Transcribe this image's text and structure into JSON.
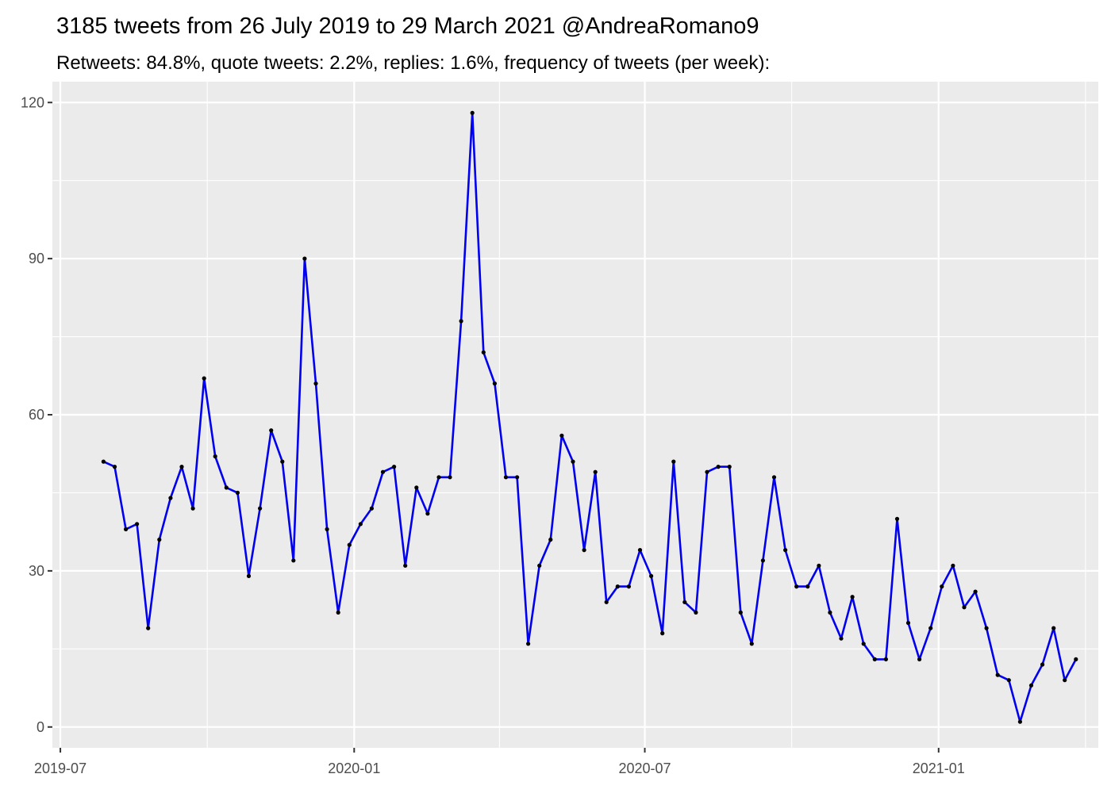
{
  "chart_data": {
    "type": "line",
    "title": "3185 tweets from 26 July 2019 to 29 March 2021 @AndreaRomano9",
    "subtitle": "Retweets: 84.8%, quote tweets: 2.2%, replies: 1.6%, frequency of tweets (per week):",
    "xlabel": "",
    "ylabel": "",
    "ylim": [
      -4,
      124
    ],
    "xlim": [
      "2019-06-26",
      "2021-04-11"
    ],
    "grid": true,
    "legend": "none",
    "colors": {
      "line": "#0000ee",
      "point": "#000000",
      "panel": "#ebebeb",
      "grid": "#ffffff"
    },
    "y_ticks": [
      0,
      30,
      60,
      90,
      120
    ],
    "x_ticks": [
      {
        "value": "2019-07-01",
        "label": "2019-07"
      },
      {
        "value": "2020-01-01",
        "label": "2020-01"
      },
      {
        "value": "2020-07-01",
        "label": "2020-07"
      },
      {
        "value": "2021-01-01",
        "label": "2021-01"
      }
    ],
    "x": [
      "2019-07-28",
      "2019-08-04",
      "2019-08-11",
      "2019-08-18",
      "2019-08-25",
      "2019-09-01",
      "2019-09-08",
      "2019-09-15",
      "2019-09-22",
      "2019-09-29",
      "2019-10-06",
      "2019-10-13",
      "2019-10-20",
      "2019-10-27",
      "2019-11-03",
      "2019-11-10",
      "2019-11-17",
      "2019-11-24",
      "2019-12-01",
      "2019-12-08",
      "2019-12-15",
      "2019-12-22",
      "2019-12-29",
      "2020-01-05",
      "2020-01-12",
      "2020-01-19",
      "2020-01-26",
      "2020-02-02",
      "2020-02-09",
      "2020-02-16",
      "2020-02-23",
      "2020-03-01",
      "2020-03-08",
      "2020-03-15",
      "2020-03-22",
      "2020-03-29",
      "2020-04-05",
      "2020-04-12",
      "2020-04-19",
      "2020-04-26",
      "2020-05-03",
      "2020-05-10",
      "2020-05-17",
      "2020-05-24",
      "2020-05-31",
      "2020-06-07",
      "2020-06-14",
      "2020-06-21",
      "2020-06-28",
      "2020-07-05",
      "2020-07-12",
      "2020-07-19",
      "2020-07-26",
      "2020-08-02",
      "2020-08-09",
      "2020-08-16",
      "2020-08-23",
      "2020-08-30",
      "2020-09-06",
      "2020-09-13",
      "2020-09-20",
      "2020-09-27",
      "2020-10-04",
      "2020-10-11",
      "2020-10-18",
      "2020-10-25",
      "2020-11-01",
      "2020-11-08",
      "2020-11-15",
      "2020-11-22",
      "2020-11-29",
      "2020-12-06",
      "2020-12-13",
      "2020-12-20",
      "2020-12-27",
      "2021-01-03",
      "2021-01-10",
      "2021-01-17",
      "2021-01-24",
      "2021-01-31",
      "2021-02-07",
      "2021-02-14",
      "2021-02-21",
      "2021-02-28",
      "2021-03-07",
      "2021-03-14",
      "2021-03-21",
      "2021-03-28"
    ],
    "series": [
      {
        "values": [
          51,
          50,
          38,
          39,
          19,
          36,
          44,
          50,
          42,
          67,
          52,
          46,
          45,
          29,
          42,
          57,
          51,
          32,
          90,
          66,
          38,
          22,
          35,
          39,
          42,
          49,
          50,
          31,
          46,
          41,
          48,
          48,
          78,
          118,
          72,
          66,
          48,
          48,
          16,
          31,
          36,
          56,
          51,
          34,
          49,
          24,
          27,
          27,
          34,
          29,
          18,
          51,
          24,
          22,
          49,
          50,
          50,
          22,
          16,
          32,
          48,
          34,
          27,
          27,
          31,
          22,
          17,
          25,
          16,
          13,
          13,
          40,
          20,
          13,
          19,
          27,
          31,
          23,
          26,
          19,
          10,
          9,
          1,
          8,
          12,
          19,
          9,
          13
        ]
      }
    ]
  }
}
